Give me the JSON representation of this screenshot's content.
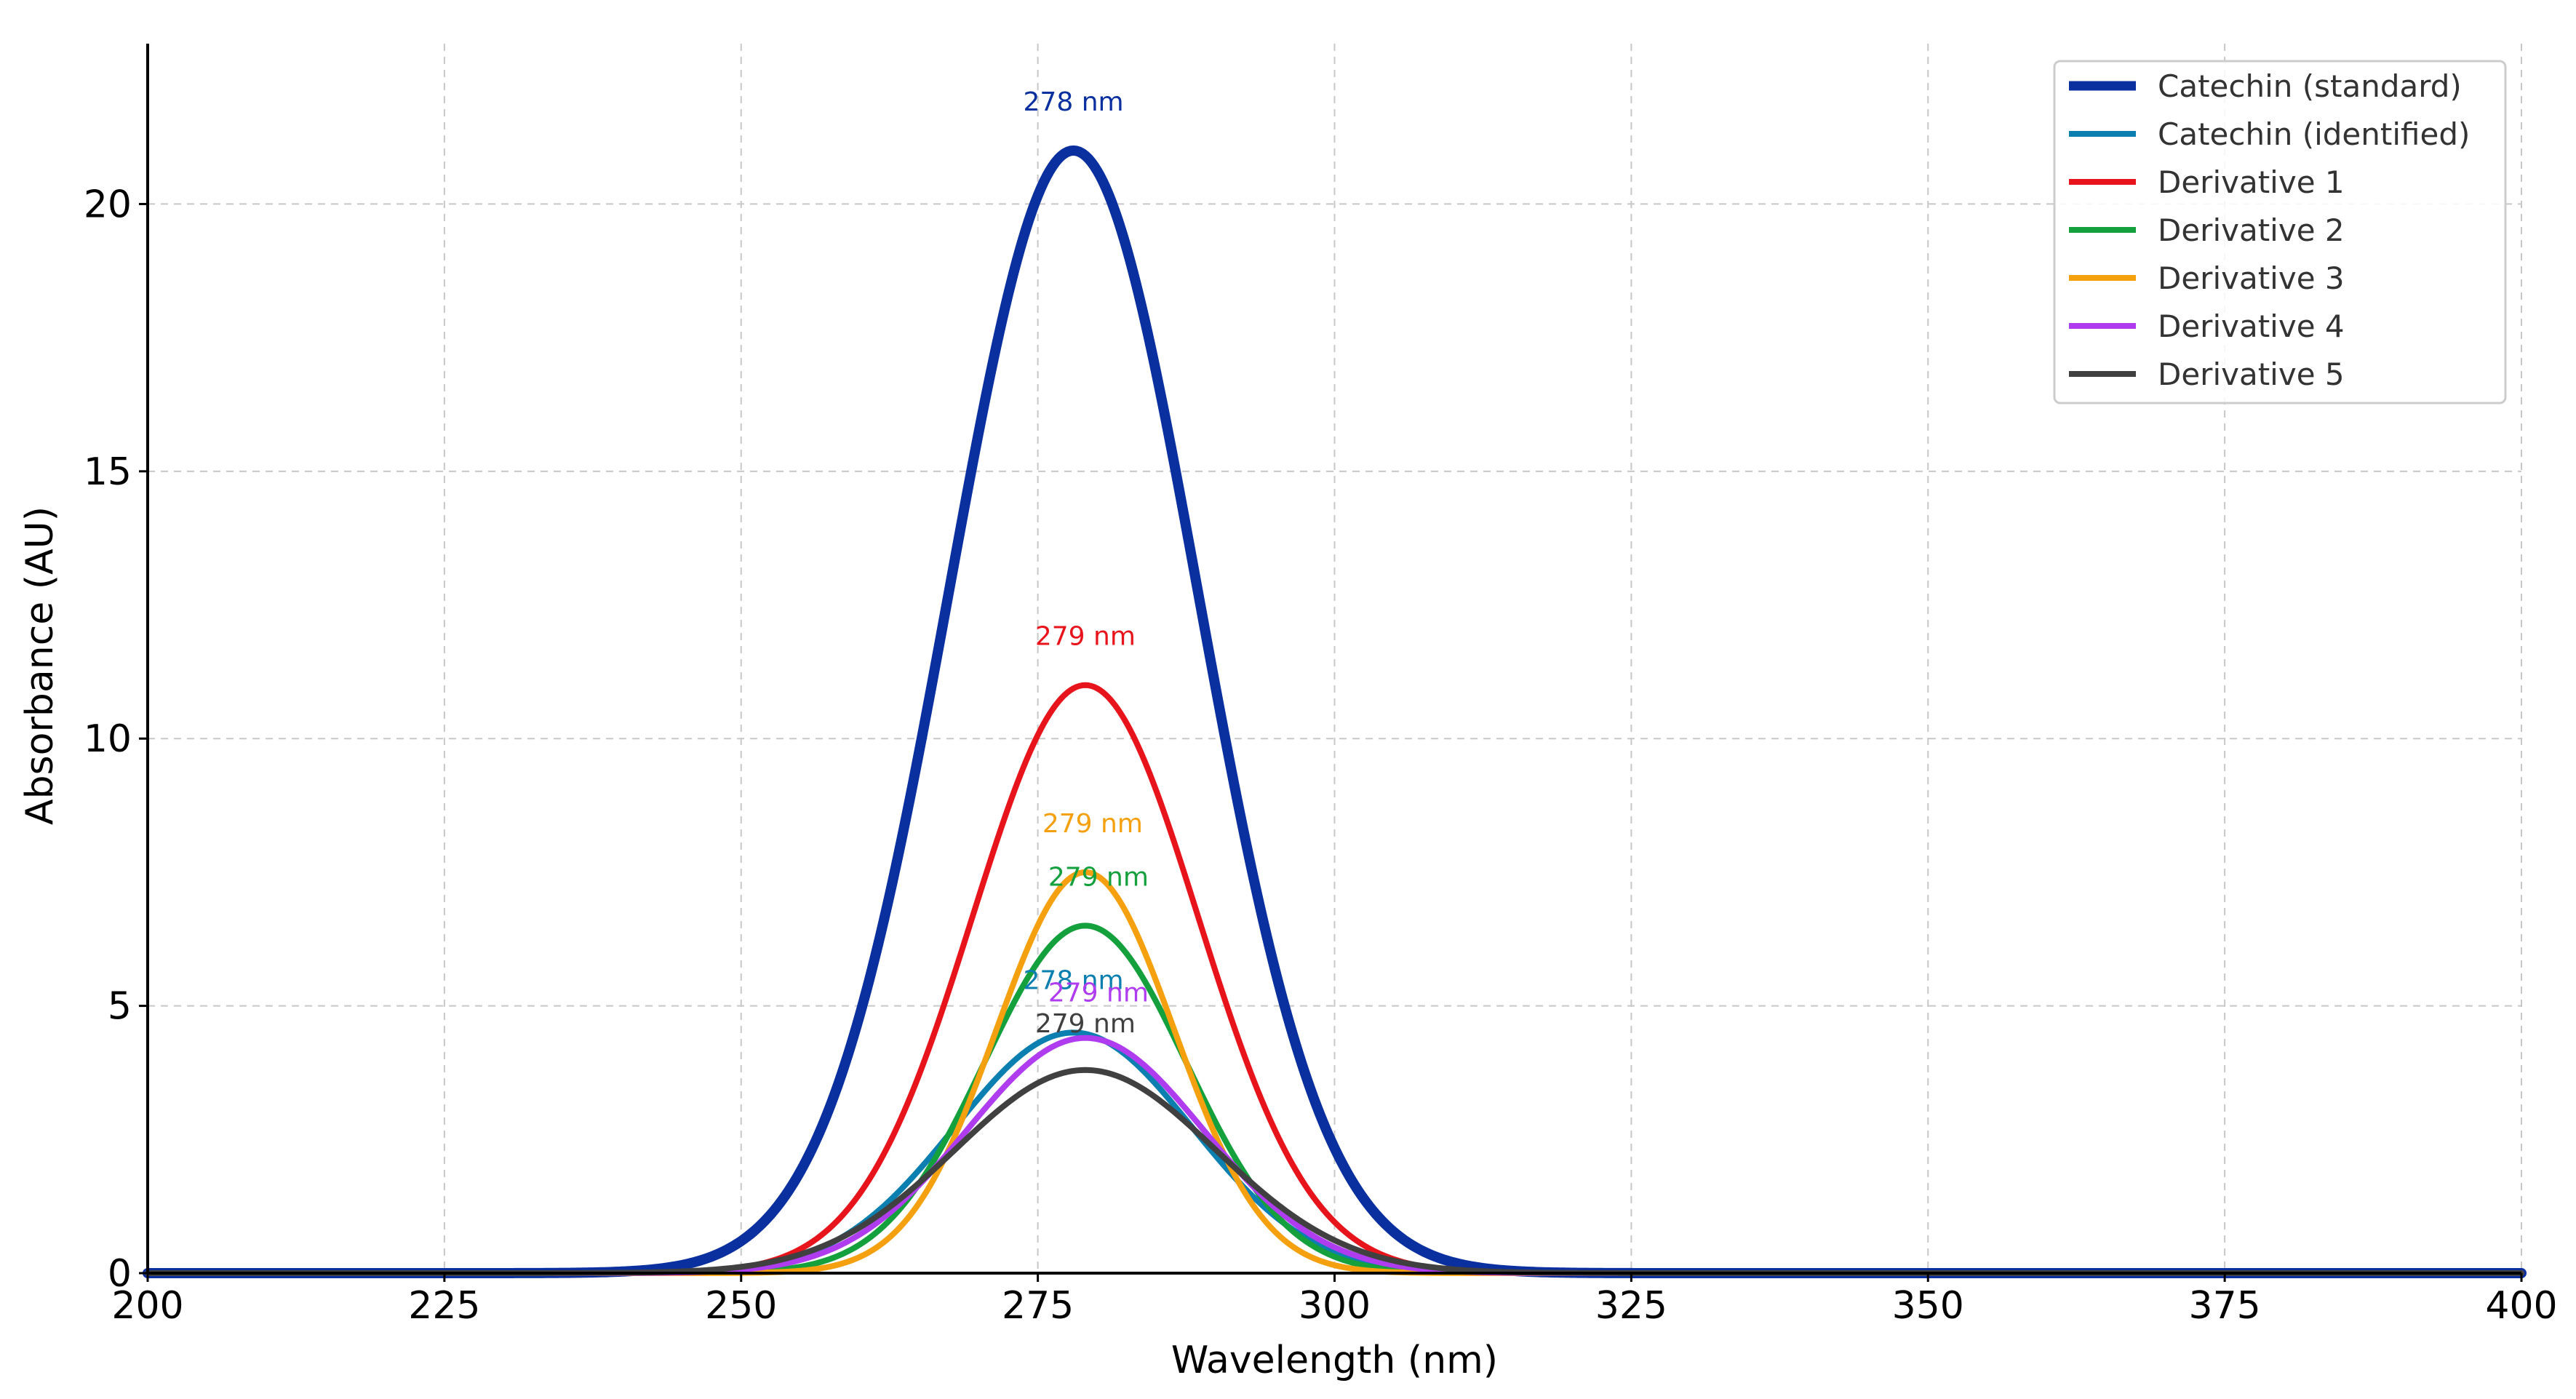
{
  "chart_data": {
    "type": "line",
    "title": "",
    "xlabel": "Wavelength (nm)",
    "ylabel": "Absorbance (AU)",
    "xlim": [
      200,
      400
    ],
    "ylim": [
      0,
      23
    ],
    "xticks": [
      200,
      225,
      250,
      275,
      300,
      325,
      350,
      375,
      400
    ],
    "yticks": [
      0,
      5,
      10,
      15,
      20
    ],
    "grid": true,
    "legend_position": "top-right",
    "series": [
      {
        "name": "Catechin (standard)",
        "color": "#0a2f9e",
        "peak_x": 278,
        "peak_y": 21.0,
        "sigma": 10.5,
        "peak_label": "278 nm",
        "line_width": "thick"
      },
      {
        "name": "Catechin (identified)",
        "color": "#0a7fb0",
        "peak_x": 278,
        "peak_y": 4.5,
        "sigma": 10.0,
        "peak_label": "278 nm",
        "line_width": "normal"
      },
      {
        "name": "Derivative 1",
        "color": "#e8141c",
        "peak_x": 279,
        "peak_y": 11.0,
        "sigma": 9.5,
        "peak_label": "279 nm",
        "line_width": "normal"
      },
      {
        "name": "Derivative 2",
        "color": "#14a03c",
        "peak_x": 279,
        "peak_y": 6.5,
        "sigma": 8.5,
        "peak_label": "279 nm",
        "line_width": "normal"
      },
      {
        "name": "Derivative 3",
        "color": "#f5a00f",
        "peak_x": 279,
        "peak_y": 7.5,
        "sigma": 7.5,
        "peak_label": "279 nm",
        "line_width": "normal"
      },
      {
        "name": "Derivative 4",
        "color": "#b03cf0",
        "peak_x": 279,
        "peak_y": 4.4,
        "sigma": 10.0,
        "peak_label": "279 nm",
        "line_width": "normal"
      },
      {
        "name": "Derivative 5",
        "color": "#404040",
        "peak_x": 279,
        "peak_y": 3.8,
        "sigma": 11.0,
        "peak_label": "279 nm",
        "line_width": "normal"
      }
    ]
  }
}
